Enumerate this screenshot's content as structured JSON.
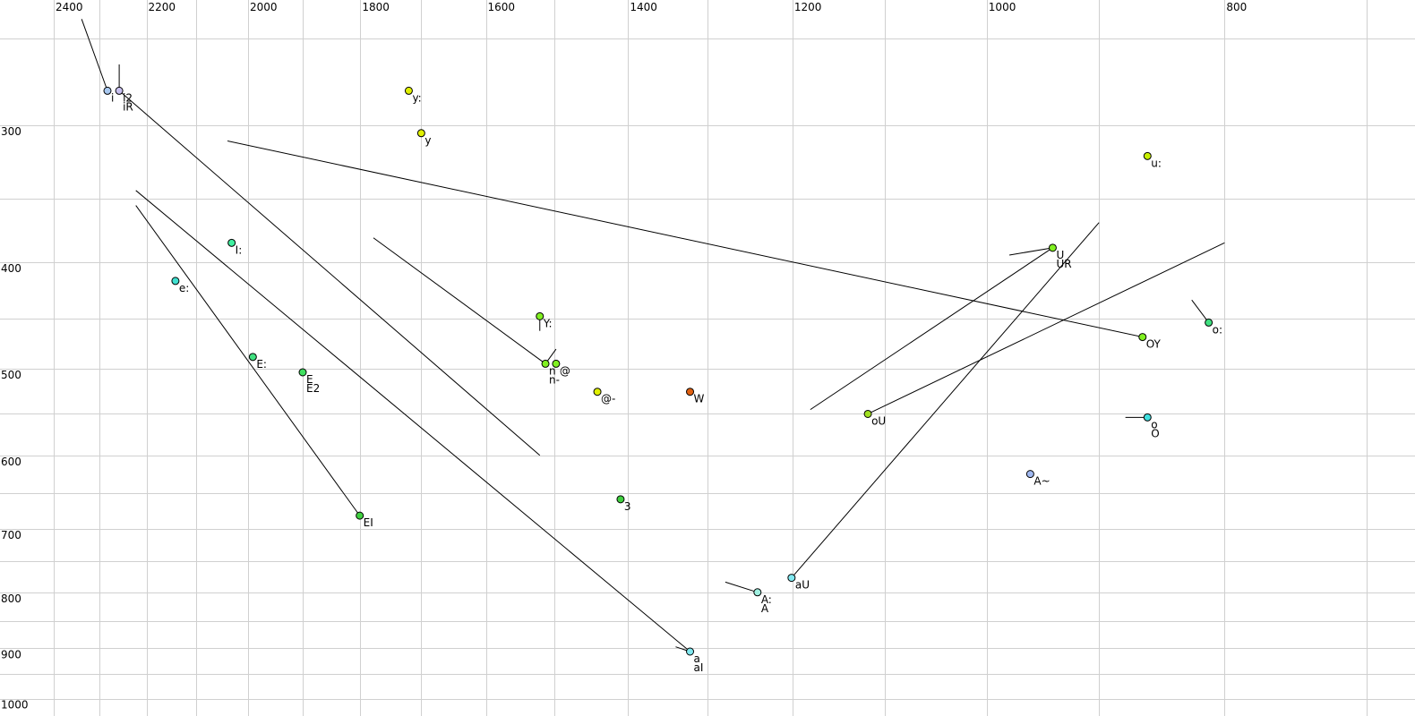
{
  "chart_data": {
    "type": "scatter",
    "title": "",
    "xlabel": "",
    "ylabel": "",
    "x_axis": {
      "quantity": "F2",
      "scale": "log",
      "reversed": true,
      "range": [
        700,
        2450
      ],
      "position": "top",
      "grid_step": 100,
      "tick_labels": [
        2400,
        2200,
        2000,
        1800,
        1600,
        1400,
        1200,
        1000,
        800
      ]
    },
    "y_axis": {
      "quantity": "F1",
      "scale": "log",
      "reversed": false,
      "range": [
        225,
        1010
      ],
      "position": "left",
      "grid_step": 50,
      "tick_labels": [
        300,
        400,
        500,
        600,
        700,
        800,
        900,
        1000
      ]
    },
    "grid": true,
    "grid_color": "#d0d0d0",
    "points": [
      {
        "labels": [
          "i"
        ],
        "f2": 2282,
        "f1": 279,
        "color": "#a8c8f0"
      },
      {
        "labels": [
          "i2",
          "iR"
        ],
        "f2": 2257,
        "f1": 279,
        "color": "#c8c0f0"
      },
      {
        "labels": [
          "y:"
        ],
        "f2": 1720,
        "f1": 279,
        "color": "#e0f000"
      },
      {
        "labels": [
          "y"
        ],
        "f2": 1700,
        "f1": 305,
        "color": "#e0f000"
      },
      {
        "labels": [
          "u:"
        ],
        "f2": 860,
        "f1": 320,
        "color": "#c8f000"
      },
      {
        "labels": [
          "I:"
        ],
        "f2": 2031,
        "f1": 384,
        "color": "#40f0a0"
      },
      {
        "labels": [
          "e:"
        ],
        "f2": 2141,
        "f1": 416,
        "color": "#40e0d0"
      },
      {
        "labels": [
          "E:"
        ],
        "f2": 1991,
        "f1": 488,
        "color": "#40e080"
      },
      {
        "labels": [
          "E",
          "E2"
        ],
        "f2": 1900,
        "f1": 504,
        "color": "#40e060"
      },
      {
        "labels": [
          "EI"
        ],
        "f2": 1801,
        "f1": 681,
        "color": "#40d040"
      },
      {
        "labels": [
          "Y:"
        ],
        "f2": 1521,
        "f1": 448,
        "color": "#80f020"
      },
      {
        "labels": [
          "n",
          "n-"
        ],
        "f2": 1513,
        "f1": 495,
        "color": "#80f020"
      },
      {
        "labels": [
          "@"
        ],
        "f2": 1498,
        "f1": 495,
        "color": "#80f020"
      },
      {
        "labels": [
          "@-"
        ],
        "f2": 1441,
        "f1": 525,
        "color": "#e0f000"
      },
      {
        "labels": [
          "W"
        ],
        "f2": 1321,
        "f1": 525,
        "color": "#e06010"
      },
      {
        "labels": [
          "3"
        ],
        "f2": 1410,
        "f1": 658,
        "color": "#40d040"
      },
      {
        "labels": [
          "a",
          "aI"
        ],
        "f2": 1321,
        "f1": 906,
        "color": "#80e8f0"
      },
      {
        "labels": [
          "A:",
          "A"
        ],
        "f2": 1240,
        "f1": 800,
        "color": "#a0f0e0"
      },
      {
        "labels": [
          "aU"
        ],
        "f2": 1201,
        "f1": 776,
        "color": "#80e8f0"
      },
      {
        "labels": [
          "oU"
        ],
        "f2": 1118,
        "f1": 550,
        "color": "#a0e020"
      },
      {
        "labels": [
          "U",
          "UR"
        ],
        "f2": 940,
        "f1": 388,
        "color": "#80f020"
      },
      {
        "labels": [
          "OY"
        ],
        "f2": 864,
        "f1": 468,
        "color": "#80f020"
      },
      {
        "labels": [
          "o:"
        ],
        "f2": 812,
        "f1": 454,
        "color": "#40e080"
      },
      {
        "labels": [
          "o",
          "O"
        ],
        "f2": 860,
        "f1": 554,
        "color": "#40e0e0"
      },
      {
        "labels": [
          "A~"
        ],
        "f2": 960,
        "f1": 624,
        "color": "#a0b8f0"
      }
    ],
    "trajectories": [
      {
        "from": [
          2338,
          240
        ],
        "to": [
          2282,
          279
        ]
      },
      {
        "from": [
          2257,
          264
        ],
        "to": [
          2257,
          279
        ]
      },
      {
        "from": [
          2257,
          279
        ],
        "to": [
          1521,
          600
        ]
      },
      {
        "from": [
          2039,
          310
        ],
        "to": [
          864,
          468
        ]
      },
      {
        "from": [
          2222,
          344
        ],
        "to": [
          1321,
          906
        ]
      },
      {
        "from": [
          2222,
          355
        ],
        "to": [
          1801,
          681
        ]
      },
      {
        "from": [
          1778,
          380
        ],
        "to": [
          1513,
          495
        ]
      },
      {
        "from": [
          1513,
          495
        ],
        "to": [
          1498,
          480
        ]
      },
      {
        "from": [
          1521,
          448
        ],
        "to": [
          1521,
          462
        ]
      },
      {
        "from": [
          1339,
          897
        ],
        "to": [
          1321,
          906
        ]
      },
      {
        "from": [
          1278,
          783
        ],
        "to": [
          1240,
          800
        ]
      },
      {
        "from": [
          1201,
          776
        ],
        "to": [
          900,
          368
        ]
      },
      {
        "from": [
          1180,
          545
        ],
        "to": [
          940,
          388
        ]
      },
      {
        "from": [
          979,
          394
        ],
        "to": [
          940,
          388
        ]
      },
      {
        "from": [
          1118,
          550
        ],
        "to": [
          800,
          384
        ]
      },
      {
        "from": [
          825,
          433
        ],
        "to": [
          812,
          454
        ]
      },
      {
        "from": [
          878,
          554
        ],
        "to": [
          860,
          554
        ]
      }
    ]
  }
}
